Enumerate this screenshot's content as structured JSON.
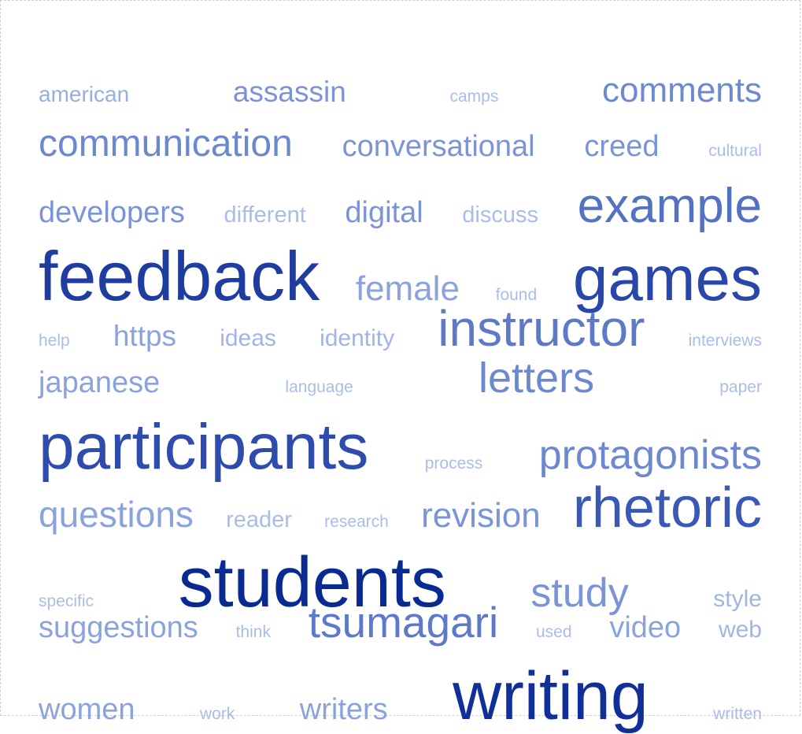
{
  "cloud": {
    "rows": [
      [
        {
          "text": "american",
          "size": 28,
          "color": "#97aee3"
        },
        {
          "text": "assassin",
          "size": 37,
          "color": "#7a93d7"
        },
        {
          "text": "camps",
          "size": 21,
          "color": "#a9bde9"
        },
        {
          "text": "comments",
          "size": 44,
          "color": "#6d89d0"
        }
      ],
      [
        {
          "text": "communication",
          "size": 48,
          "color": "#6c89d0"
        },
        {
          "text": "conversational",
          "size": 38,
          "color": "#7a94d7"
        },
        {
          "text": "creed",
          "size": 38,
          "color": "#7a94d7"
        },
        {
          "text": "cultural",
          "size": 21,
          "color": "#a9bde9"
        }
      ],
      [
        {
          "text": "developers",
          "size": 38,
          "color": "#7a94d7"
        },
        {
          "text": "different",
          "size": 29,
          "color": "#a9bde9"
        },
        {
          "text": "digital",
          "size": 38,
          "color": "#7a94d7"
        },
        {
          "text": "discuss",
          "size": 29,
          "color": "#a9bde9"
        },
        {
          "text": "example",
          "size": 62,
          "color": "#5472c4"
        }
      ],
      [
        {
          "text": "feedback",
          "size": 88,
          "color": "#1f3da0"
        },
        {
          "text": "female",
          "size": 44,
          "color": "#8aa3dd"
        },
        {
          "text": "found",
          "size": 21,
          "color": "#a9bde9"
        },
        {
          "text": "games",
          "size": 80,
          "color": "#2947a8"
        }
      ],
      [
        {
          "text": "help",
          "size": 21,
          "color": "#a9bde9"
        },
        {
          "text": "https",
          "size": 37,
          "color": "#8aa3dd"
        },
        {
          "text": "ideas",
          "size": 30,
          "color": "#a0b5e6"
        },
        {
          "text": "identity",
          "size": 30,
          "color": "#a0b5e6"
        },
        {
          "text": "instructor",
          "size": 64,
          "color": "#5d79c8"
        },
        {
          "text": "interviews",
          "size": 21,
          "color": "#a9bde9"
        }
      ],
      [
        {
          "text": "japanese",
          "size": 38,
          "color": "#8aa3dd"
        },
        {
          "text": "language",
          "size": 21,
          "color": "#a9bde9"
        },
        {
          "text": "letters",
          "size": 54,
          "color": "#6c89d0"
        },
        {
          "text": "paper",
          "size": 21,
          "color": "#a9bde9"
        }
      ],
      [
        {
          "text": "participants",
          "size": 82,
          "color": "#2d4cad"
        },
        {
          "text": "process",
          "size": 21,
          "color": "#a9bde9"
        },
        {
          "text": "protagonists",
          "size": 52,
          "color": "#6c89d0"
        }
      ],
      [
        {
          "text": "questions",
          "size": 46,
          "color": "#8aa3dd"
        },
        {
          "text": "reader",
          "size": 29,
          "color": "#a9bde9"
        },
        {
          "text": "research",
          "size": 21,
          "color": "#a9bde9"
        },
        {
          "text": "revision",
          "size": 44,
          "color": "#7a94d7"
        },
        {
          "text": "rhetoric",
          "size": 72,
          "color": "#3a58b5"
        }
      ],
      [
        {
          "text": "specific",
          "size": 21,
          "color": "#a9bde9"
        },
        {
          "text": "students",
          "size": 90,
          "color": "#082a92"
        },
        {
          "text": "study",
          "size": 52,
          "color": "#7a94d7"
        },
        {
          "text": "style",
          "size": 30,
          "color": "#a0b5e6"
        }
      ],
      [
        {
          "text": "suggestions",
          "size": 38,
          "color": "#8aa3dd"
        },
        {
          "text": "think",
          "size": 21,
          "color": "#a9bde9"
        },
        {
          "text": "tsumagari",
          "size": 55,
          "color": "#5d79c8"
        },
        {
          "text": "used",
          "size": 21,
          "color": "#a9bde9"
        },
        {
          "text": "video",
          "size": 38,
          "color": "#8aa3dd"
        },
        {
          "text": "web",
          "size": 30,
          "color": "#a0b5e6"
        }
      ],
      [
        {
          "text": "women",
          "size": 38,
          "color": "#8aa3dd"
        },
        {
          "text": "work",
          "size": 21,
          "color": "#a9bde9"
        },
        {
          "text": "writers",
          "size": 38,
          "color": "#8aa3dd"
        },
        {
          "text": "writing",
          "size": 86,
          "color": "#112f98"
        },
        {
          "text": "written",
          "size": 21,
          "color": "#a9bde9"
        }
      ]
    ]
  }
}
